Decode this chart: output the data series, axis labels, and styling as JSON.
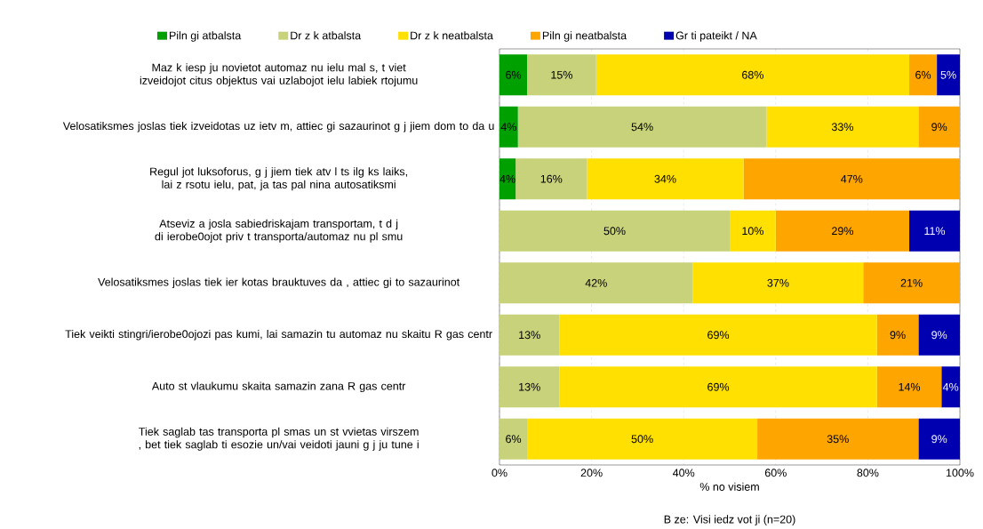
{
  "chart_data": {
    "type": "bar",
    "orientation": "horizontal",
    "stacked": true,
    "categories": [
      "Maz  k iesp  ju novietot automaz nu ielu mal  s, t   viet  izveidojot citus objektus vai uzlabojot ielu labiek  rtojumu",
      "Velosatiksmes joslas tiek izveidotas uz ietv  m, attiec gi sazaurinot g  j  jiem dom  to da u",
      "Regul  jot luksoforus, g  j  jiem tiek atv  l  ts ilg  ks laiks, lai z    rsotu ielu, pat, ja tas pal  nina autosatiksmi",
      "Atseviz  a josla sabiedriskajam transportam, t  d  j  di ierobe0ojot priv  t   transporta/automaz nu pl  smu",
      "Velosatiksmes joslas tiek ier kotas brauktuves da   , attiec gi to sazaurinot",
      "Tiek veikti stingri/ierobe0ojozi pas  kumi, lai samazin  tu automaz nu skaitu R gas centr",
      "Auto st  vlaukumu skaita samazin  zana R gas centr",
      "Tiek saglab  tas transporta pl  smas un st  vvietas virszem  , bet tiek saglab  ti esozie un/vai veidoti jauni g  j  ju tune i"
    ],
    "series": [
      {
        "name": "Piln gi atbalsta",
        "color": "#00a000",
        "values": [
          6,
          4,
          3.5,
          0,
          0,
          0,
          0,
          0
        ],
        "value_labels": [
          "6%",
          "4%",
          "4%",
          null,
          null,
          null,
          null,
          null
        ]
      },
      {
        "name": "Dr z  k atbalsta",
        "color": "#c8d27a",
        "values": [
          15,
          54,
          15.5,
          50,
          42,
          13,
          13,
          6
        ],
        "value_labels": [
          "15%",
          "54%",
          "16%",
          "50%",
          "42%",
          "13%",
          "13%",
          "6%"
        ]
      },
      {
        "name": "Dr z  k neatbalsta",
        "color": "#ffe000",
        "values": [
          68,
          33,
          34,
          10,
          37,
          69,
          69,
          50
        ],
        "value_labels": [
          "68%",
          "33%",
          "34%",
          "10%",
          "37%",
          "69%",
          "69%",
          "50%"
        ]
      },
      {
        "name": "Piln gi neatbalsta",
        "color": "#ffa500",
        "values": [
          6,
          9,
          47,
          29,
          21,
          9,
          14,
          35
        ],
        "value_labels": [
          "6%",
          "9%",
          "47%",
          "29%",
          "21%",
          "9%",
          "14%",
          "35%"
        ]
      },
      {
        "name": "Gr  ti pateikt / NA",
        "color": "#0000b0",
        "values": [
          5,
          0,
          0,
          11,
          0,
          9,
          4,
          9
        ],
        "value_labels": [
          "5%",
          null,
          null,
          "11%",
          null,
          "9%",
          "4%",
          "9%"
        ]
      }
    ],
    "xlim": [
      0,
      100
    ],
    "xticks": [
      {
        "value": 0,
        "label": "0%"
      },
      {
        "value": 20,
        "label": "20%"
      },
      {
        "value": 40,
        "label": "40%"
      },
      {
        "value": 60,
        "label": "60%"
      },
      {
        "value": 80,
        "label": "80%"
      },
      {
        "value": 100,
        "label": "100%"
      }
    ],
    "xlabel": "% no visiem",
    "annotations": [
      "B  ze:  Visi iedz vot  ji  (n=20)"
    ],
    "grid": "x",
    "legend": "top"
  }
}
